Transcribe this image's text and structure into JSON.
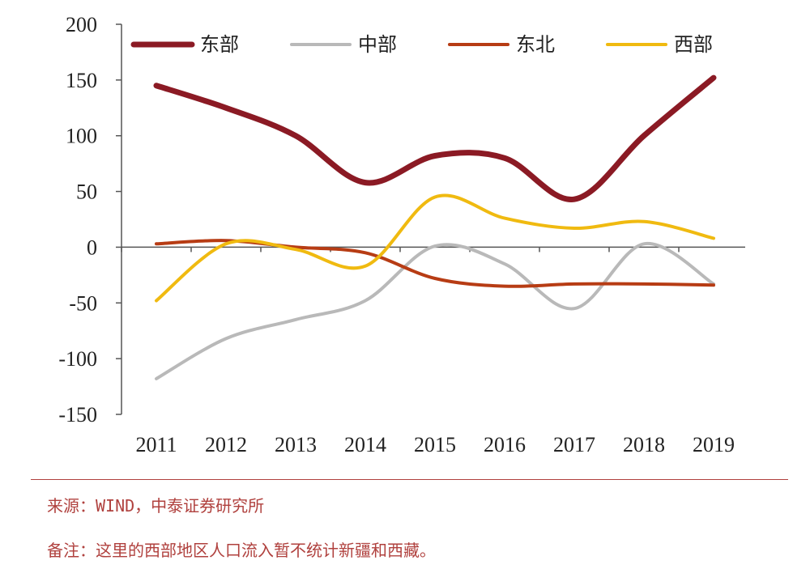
{
  "chart_data": {
    "type": "line",
    "categories": [
      "2011",
      "2012",
      "2013",
      "2014",
      "2015",
      "2016",
      "2017",
      "2018",
      "2019"
    ],
    "series": [
      {
        "name": "东部",
        "color": "#8b1a24",
        "values": [
          145,
          125,
          100,
          58,
          82,
          80,
          43,
          100,
          152
        ]
      },
      {
        "name": "中部",
        "color": "#b9b9b9",
        "values": [
          -118,
          -82,
          -65,
          -48,
          1,
          -15,
          -55,
          3,
          -33
        ]
      },
      {
        "name": "东北",
        "color": "#b73c14",
        "values": [
          3,
          6,
          0,
          -5,
          -28,
          -35,
          -33,
          -33,
          -34
        ]
      },
      {
        "name": "西部",
        "color": "#f0ba10",
        "values": [
          -48,
          3,
          -2,
          -17,
          45,
          26,
          17,
          23,
          8
        ]
      }
    ],
    "ylim": [
      -150,
      200
    ],
    "yticks": [
      200,
      150,
      100,
      50,
      0,
      -50,
      -100,
      -150
    ],
    "legend_position": "top",
    "grid": false
  },
  "notes": {
    "source": "来源：WIND，中泰证券研究所",
    "remark": "备注：这里的西部地区人口流入暂不统计新疆和西藏。"
  }
}
